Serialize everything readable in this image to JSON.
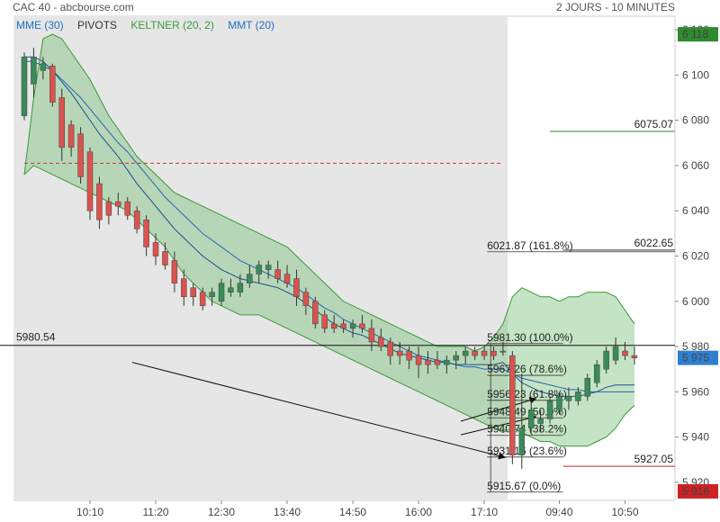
{
  "header": {
    "title": "CAC 40 - abcbourse.com",
    "period": "2 JOURS - 10 MINUTES"
  },
  "legend": [
    {
      "label": "MME (30)",
      "color": "#1f6fc1"
    },
    {
      "label": "PIVOTS",
      "color": "#333333"
    },
    {
      "label": "KELTNER (20, 2)",
      "color": "#3a9a3a"
    },
    {
      "label": "MMT (20)",
      "color": "#1f6fc1"
    }
  ],
  "colors": {
    "up": "#3a8a5a",
    "down": "#d9534f",
    "band_fill": "#7fc47f",
    "band_line": "#3a9a3a",
    "ma": "#2166b0",
    "shade": "#e6e6e6"
  },
  "chart_data": {
    "type": "candlestick",
    "ylim": [
      5912,
      6126
    ],
    "yticks": [
      5920,
      5940,
      5960,
      5980,
      6000,
      6020,
      6040,
      6060,
      6080,
      6100,
      6120
    ],
    "ytick_labels": [
      "5 920",
      "5 940",
      "5 960",
      "5 980",
      "6 000",
      "6 020",
      "6 040",
      "6 060",
      "6 080",
      "6 100",
      "6 120"
    ],
    "xticks": [
      {
        "label": "10:10",
        "index": 7
      },
      {
        "label": "11:20",
        "index": 14
      },
      {
        "label": "12:30",
        "index": 21
      },
      {
        "label": "13:40",
        "index": 28
      },
      {
        "label": "14:50",
        "index": 35
      },
      {
        "label": "16:00",
        "index": 42
      },
      {
        "label": "17:10",
        "index": 49
      },
      {
        "label": "09:40",
        "index": 57
      },
      {
        "label": "10:50",
        "index": 64
      }
    ],
    "session_split_index": 51.5,
    "candles": [
      {
        "o": 6082,
        "h": 6110,
        "l": 6080,
        "c": 6108
      },
      {
        "o": 6096,
        "h": 6112,
        "l": 6090,
        "c": 6108
      },
      {
        "o": 6102,
        "h": 6108,
        "l": 6098,
        "c": 6105
      },
      {
        "o": 6104,
        "h": 6105,
        "l": 6086,
        "c": 6088
      },
      {
        "o": 6090,
        "h": 6094,
        "l": 6062,
        "c": 6068
      },
      {
        "o": 6078,
        "h": 6080,
        "l": 6064,
        "c": 6068
      },
      {
        "o": 6074,
        "h": 6077,
        "l": 6052,
        "c": 6055
      },
      {
        "o": 6066,
        "h": 6068,
        "l": 6036,
        "c": 6040
      },
      {
        "o": 6052,
        "h": 6055,
        "l": 6032,
        "c": 6036
      },
      {
        "o": 6044,
        "h": 6046,
        "l": 6034,
        "c": 6038
      },
      {
        "o": 6044,
        "h": 6048,
        "l": 6038,
        "c": 6042
      },
      {
        "o": 6044,
        "h": 6046,
        "l": 6036,
        "c": 6038
      },
      {
        "o": 6040,
        "h": 6042,
        "l": 6030,
        "c": 6032
      },
      {
        "o": 6036,
        "h": 6038,
        "l": 6020,
        "c": 6024
      },
      {
        "o": 6026,
        "h": 6030,
        "l": 6016,
        "c": 6020
      },
      {
        "o": 6022,
        "h": 6026,
        "l": 6014,
        "c": 6016
      },
      {
        "o": 6018,
        "h": 6022,
        "l": 6004,
        "c": 6008
      },
      {
        "o": 6010,
        "h": 6014,
        "l": 5998,
        "c": 6002
      },
      {
        "o": 6006,
        "h": 6008,
        "l": 5998,
        "c": 6002
      },
      {
        "o": 6004,
        "h": 6006,
        "l": 5996,
        "c": 5998
      },
      {
        "o": 6002,
        "h": 6006,
        "l": 5998,
        "c": 6004
      },
      {
        "o": 6000,
        "h": 6010,
        "l": 5998,
        "c": 6008
      },
      {
        "o": 6004,
        "h": 6010,
        "l": 6002,
        "c": 6006
      },
      {
        "o": 6004,
        "h": 6012,
        "l": 6002,
        "c": 6008
      },
      {
        "o": 6008,
        "h": 6016,
        "l": 6006,
        "c": 6012
      },
      {
        "o": 6012,
        "h": 6018,
        "l": 6008,
        "c": 6016
      },
      {
        "o": 6014,
        "h": 6018,
        "l": 6010,
        "c": 6016
      },
      {
        "o": 6014,
        "h": 6018,
        "l": 6008,
        "c": 6010
      },
      {
        "o": 6012,
        "h": 6016,
        "l": 6006,
        "c": 6008
      },
      {
        "o": 6010,
        "h": 6014,
        "l": 5998,
        "c": 6002
      },
      {
        "o": 6004,
        "h": 6006,
        "l": 5994,
        "c": 5998
      },
      {
        "o": 6000,
        "h": 6002,
        "l": 5988,
        "c": 5990
      },
      {
        "o": 5994,
        "h": 5996,
        "l": 5986,
        "c": 5988
      },
      {
        "o": 5990,
        "h": 5994,
        "l": 5986,
        "c": 5988
      },
      {
        "o": 5990,
        "h": 5992,
        "l": 5986,
        "c": 5988
      },
      {
        "o": 5988,
        "h": 5992,
        "l": 5984,
        "c": 5990
      },
      {
        "o": 5990,
        "h": 5994,
        "l": 5986,
        "c": 5988
      },
      {
        "o": 5988,
        "h": 5992,
        "l": 5978,
        "c": 5982
      },
      {
        "o": 5984,
        "h": 5988,
        "l": 5978,
        "c": 5980
      },
      {
        "o": 5982,
        "h": 5984,
        "l": 5972,
        "c": 5976
      },
      {
        "o": 5978,
        "h": 5982,
        "l": 5972,
        "c": 5976
      },
      {
        "o": 5978,
        "h": 5980,
        "l": 5970,
        "c": 5974
      },
      {
        "o": 5976,
        "h": 5980,
        "l": 5966,
        "c": 5972
      },
      {
        "o": 5974,
        "h": 5978,
        "l": 5968,
        "c": 5972
      },
      {
        "o": 5974,
        "h": 5978,
        "l": 5970,
        "c": 5972
      },
      {
        "o": 5972,
        "h": 5976,
        "l": 5968,
        "c": 5974
      },
      {
        "o": 5974,
        "h": 5978,
        "l": 5970,
        "c": 5976
      },
      {
        "o": 5976,
        "h": 5980,
        "l": 5972,
        "c": 5978
      },
      {
        "o": 5978,
        "h": 5980,
        "l": 5974,
        "c": 5976
      },
      {
        "o": 5978,
        "h": 5980,
        "l": 5974,
        "c": 5976
      },
      {
        "o": 5978,
        "h": 5980,
        "l": 5974,
        "c": 5976
      },
      {
        "o": 5978,
        "h": 5982,
        "l": 5976,
        "c": 5978
      },
      {
        "o": 5976,
        "h": 5978,
        "l": 5928,
        "c": 5932
      },
      {
        "o": 5932,
        "h": 5968,
        "l": 5926,
        "c": 5944
      },
      {
        "o": 5944,
        "h": 5956,
        "l": 5942,
        "c": 5952
      },
      {
        "o": 5946,
        "h": 5952,
        "l": 5942,
        "c": 5948
      },
      {
        "o": 5948,
        "h": 5958,
        "l": 5946,
        "c": 5956
      },
      {
        "o": 5952,
        "h": 5960,
        "l": 5950,
        "c": 5958
      },
      {
        "o": 5956,
        "h": 5962,
        "l": 5952,
        "c": 5958
      },
      {
        "o": 5956,
        "h": 5962,
        "l": 5954,
        "c": 5960
      },
      {
        "o": 5958,
        "h": 5968,
        "l": 5956,
        "c": 5966
      },
      {
        "o": 5964,
        "h": 5974,
        "l": 5962,
        "c": 5972
      },
      {
        "o": 5970,
        "h": 5980,
        "l": 5968,
        "c": 5978
      },
      {
        "o": 5974,
        "h": 5984,
        "l": 5972,
        "c": 5980
      },
      {
        "o": 5978,
        "h": 5982,
        "l": 5974,
        "c": 5976
      },
      {
        "o": 5976,
        "h": 5980,
        "l": 5972,
        "c": 5975
      }
    ],
    "keltner_upper": [
      6056,
      6090,
      6116,
      6118,
      6116,
      6110,
      6104,
      6098,
      6090,
      6082,
      6076,
      6070,
      6064,
      6060,
      6056,
      6052,
      6048,
      6046,
      6044,
      6042,
      6040,
      6038,
      6036,
      6034,
      6032,
      6030,
      6028,
      6026,
      6024,
      6020,
      6016,
      6012,
      6008,
      6004,
      6000,
      5998,
      5996,
      5994,
      5992,
      5990,
      5988,
      5986,
      5984,
      5982,
      5980,
      5980,
      5980,
      5980,
      5978,
      5980,
      5984,
      5990,
      6002,
      6006,
      6004,
      6002,
      6002,
      6000,
      6002,
      6002,
      6004,
      6004,
      6004,
      6002,
      5996,
      5990
    ],
    "keltner_lower": [
      6056,
      6060,
      6058,
      6056,
      6054,
      6052,
      6050,
      6048,
      6046,
      6044,
      6042,
      6040,
      6036,
      6032,
      6028,
      6024,
      6018,
      6012,
      6008,
      6004,
      6000,
      5998,
      5996,
      5994,
      5994,
      5994,
      5992,
      5990,
      5988,
      5986,
      5984,
      5982,
      5980,
      5978,
      5976,
      5974,
      5972,
      5970,
      5968,
      5966,
      5964,
      5962,
      5960,
      5958,
      5956,
      5954,
      5952,
      5950,
      5948,
      5946,
      5944,
      5942,
      5944,
      5942,
      5940,
      5938,
      5938,
      5936,
      5936,
      5936,
      5936,
      5938,
      5940,
      5944,
      5950,
      5954
    ],
    "mme30": [
      6106,
      6106,
      6104,
      6102,
      6098,
      6094,
      6090,
      6085,
      6080,
      6075,
      6070,
      6066,
      6061,
      6056,
      6051,
      6046,
      6042,
      6038,
      6034,
      6030,
      6027,
      6024,
      6021,
      6018,
      6016,
      6014,
      6012,
      6010,
      6008,
      6006,
      6003,
      6000,
      5997,
      5995,
      5992,
      5990,
      5988,
      5986,
      5984,
      5982,
      5980,
      5978,
      5976,
      5975,
      5974,
      5973,
      5972,
      5971,
      5971,
      5970,
      5970,
      5970,
      5968,
      5966,
      5965,
      5964,
      5963,
      5962,
      5961,
      5961,
      5960,
      5960,
      5960,
      5960,
      5960,
      5960
    ],
    "mmt20": [
      6108,
      6108,
      6106,
      6102,
      6097,
      6092,
      6086,
      6080,
      6074,
      6069,
      6064,
      6058,
      6052,
      6047,
      6042,
      6037,
      6032,
      6028,
      6024,
      6020,
      6017,
      6014,
      6012,
      6010,
      6009,
      6008,
      6007,
      6006,
      6004,
      6002,
      5999,
      5996,
      5993,
      5990,
      5988,
      5986,
      5985,
      5983,
      5981,
      5979,
      5977,
      5976,
      5975,
      5974,
      5973,
      5973,
      5972,
      5972,
      5972,
      5972,
      5972,
      5973,
      5968,
      5964,
      5962,
      5960,
      5959,
      5958,
      5958,
      5958,
      5959,
      5960,
      5962,
      5963,
      5963,
      5963
    ],
    "pivot_line": {
      "value": 6061,
      "from_index": 0,
      "to_index": 51
    },
    "hline": {
      "value": 5980.54,
      "label": "5980.54"
    },
    "fibonacci": [
      {
        "value": 6021.87,
        "label": "6021.87",
        "pct": "(161.8%)"
      },
      {
        "value": 5981.3,
        "label": "5981.30",
        "pct": "(100.0%)"
      },
      {
        "value": 5967.26,
        "label": "5967.26",
        "pct": "(78.6%)"
      },
      {
        "value": 5956.23,
        "label": "5956.23",
        "pct": "(61.8%)"
      },
      {
        "value": 5948.49,
        "label": "5948.49",
        "pct": "(50.0%)"
      },
      {
        "value": 5940.74,
        "label": "5940.74",
        "pct": "(38.2%)"
      },
      {
        "value": 5931.16,
        "label": "5931.16",
        "pct": "(23.6%)"
      },
      {
        "value": 5915.67,
        "label": "5915.67",
        "pct": "(0.0%)"
      }
    ],
    "right_levels": [
      {
        "value": 6075.07,
        "label": "6075.07",
        "color": "#2e8b2e"
      },
      {
        "value": 6022.65,
        "label": "6022.65",
        "color": "#333333"
      },
      {
        "value": 5927.05,
        "label": "5927.05",
        "color": "#cc2222"
      }
    ],
    "price_badges": [
      {
        "value": 6118,
        "label": "6 118",
        "color": "#2e8b2e"
      },
      {
        "value": 5975,
        "label": "5 975",
        "color": "#2f7fd0"
      },
      {
        "value": 5916,
        "label": "5 916",
        "color": "#cc2222"
      }
    ],
    "arrows": [
      {
        "from": [
          11.5,
          5973
        ],
        "to": [
          51.2,
          5931
        ]
      },
      {
        "from": [
          46.5,
          5947
        ],
        "to": [
          54.5,
          5957
        ]
      },
      {
        "from": [
          46.5,
          5941
        ],
        "to": [
          54.5,
          5949
        ]
      }
    ]
  }
}
